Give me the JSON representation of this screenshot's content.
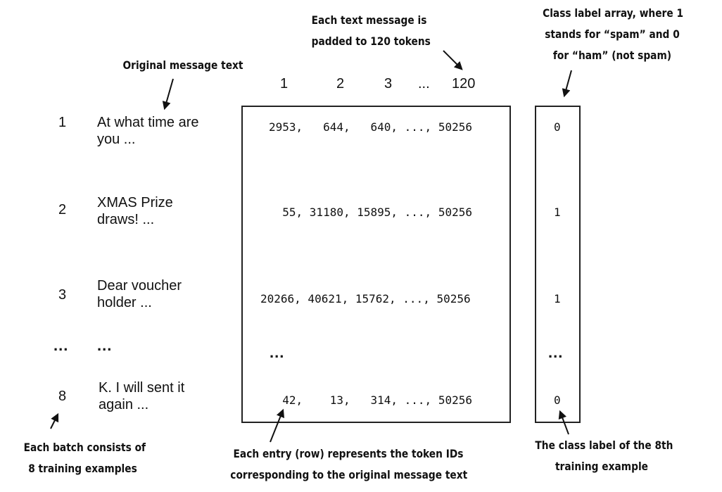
{
  "annotations": {
    "original_text_label": "Original message text",
    "padding_note_line1": "Each text message is",
    "padding_note_line2": "padded to 120 tokens",
    "class_label_note_line1": "Class label array, where 1",
    "class_label_note_line2": "stands for “spam” and 0",
    "class_label_note_line3": "for “ham” (not spam)",
    "batch_note_line1": "Each batch consists of",
    "batch_note_line2": "8 training examples",
    "row_note_line1": "Each entry (row) represents the token IDs",
    "row_note_line2": "corresponding to the original message text",
    "eighth_label_note_line1": "The class label of the 8th",
    "eighth_label_note_line2": "training example"
  },
  "column_headers": [
    "1",
    "2",
    "3",
    "...",
    "120"
  ],
  "rows": [
    {
      "index": "1",
      "text_line1": "At what time are",
      "text_line2": "you ...",
      "tokens": "2953,   644,   640, ..., 50256",
      "label": "0"
    },
    {
      "index": "2",
      "text_line1": "XMAS Prize",
      "text_line2": "draws!  ...",
      "tokens": "  55, 31180, 15895, ..., 50256",
      "label": "1"
    },
    {
      "index": "3",
      "text_line1": "Dear voucher",
      "text_line2": "holder ...",
      "tokens": "20266, 40621, 15762, ..., 50256",
      "label": "1"
    },
    {
      "index": "8",
      "text_line1": "K. I will sent it",
      "text_line2": "again ...",
      "tokens": "  42,    13,   314, ..., 50256",
      "label": "0"
    }
  ],
  "ellipsis": "..."
}
